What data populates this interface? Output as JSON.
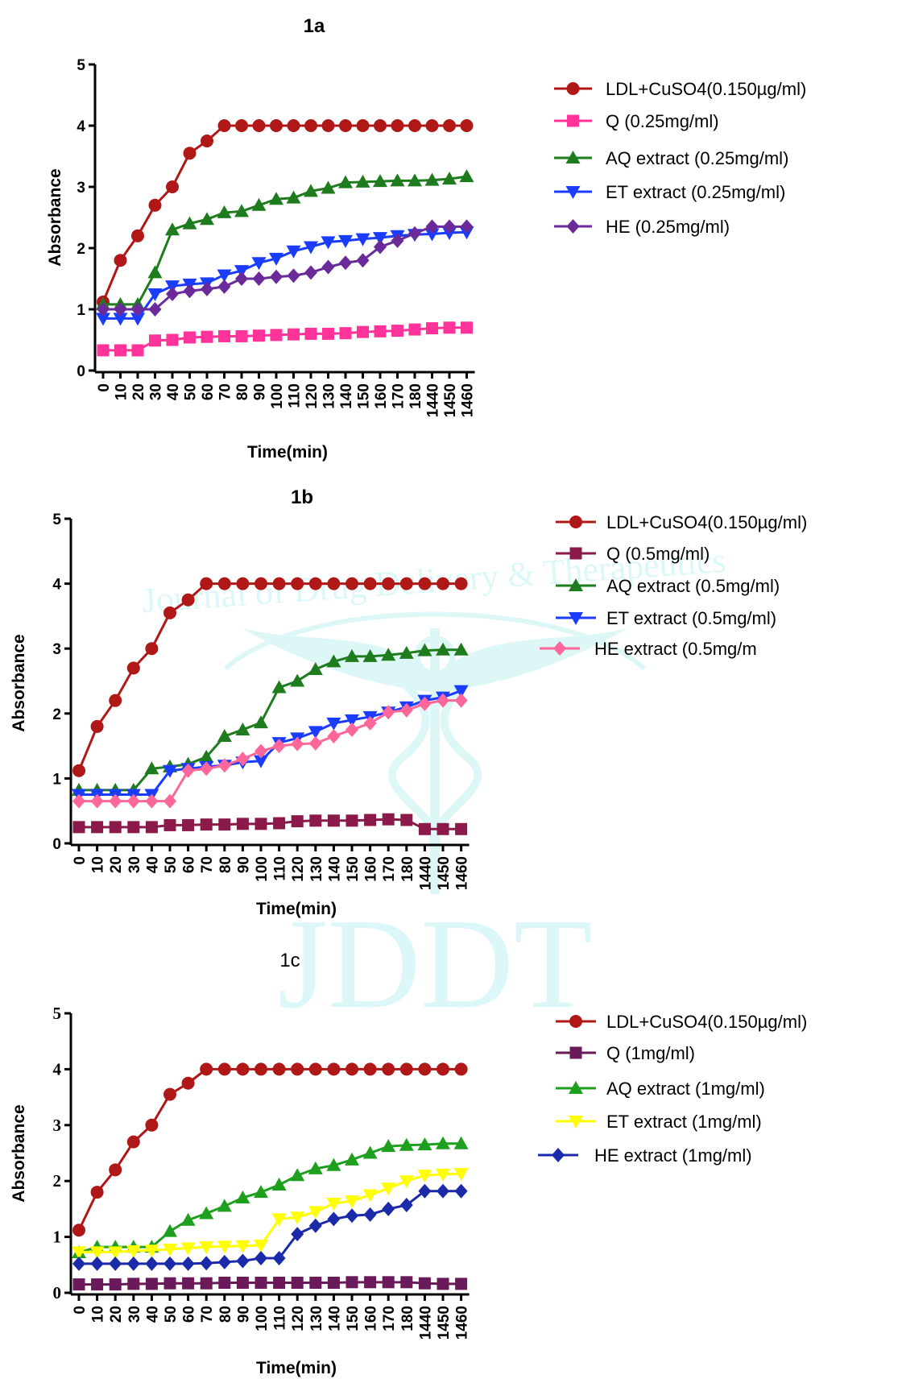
{
  "watermark": {
    "text": "JDDT",
    "subtitle": "Journal of Drug Delivery & Therapeutics"
  },
  "chart_data": [
    {
      "type": "line",
      "title": "1a",
      "xlabel": "Time(min)",
      "ylabel": "Absorbance",
      "categories": [
        "0",
        "10",
        "20",
        "30",
        "40",
        "50",
        "60",
        "70",
        "80",
        "90",
        "100",
        "110",
        "120",
        "130",
        "140",
        "150",
        "160",
        "170",
        "180",
        "1440",
        "1450",
        "1460"
      ],
      "ylim": [
        0,
        5
      ],
      "yticks": [
        "0",
        "1",
        "2",
        "3",
        "4",
        "5"
      ],
      "grid": false,
      "legend_position": "right",
      "series": [
        {
          "name": "LDL+CuSO4(0.150µg/ml)",
          "color": "#b01818",
          "marker": "circle",
          "values": [
            1.12,
            1.8,
            2.2,
            2.7,
            3.0,
            3.55,
            3.75,
            4.0,
            4.0,
            4.0,
            4.0,
            4.0,
            4.0,
            4.0,
            4.0,
            4.0,
            4.0,
            4.0,
            4.0,
            4.0,
            4.0,
            4.0
          ]
        },
        {
          "name": "Q (0.25mg/ml)",
          "color": "#ff3399",
          "marker": "square",
          "values": [
            0.33,
            0.33,
            0.33,
            0.49,
            0.5,
            0.54,
            0.55,
            0.56,
            0.56,
            0.57,
            0.58,
            0.59,
            0.6,
            0.6,
            0.61,
            0.63,
            0.64,
            0.65,
            0.67,
            0.69,
            0.7,
            0.7
          ]
        },
        {
          "name": "AQ extract (0.25mg/ml)",
          "color": "#1e7b1e",
          "marker": "triangle-up",
          "values": [
            1.08,
            1.08,
            1.08,
            1.6,
            2.3,
            2.4,
            2.47,
            2.58,
            2.6,
            2.7,
            2.8,
            2.82,
            2.93,
            2.98,
            3.07,
            3.08,
            3.09,
            3.1,
            3.1,
            3.11,
            3.13,
            3.17
          ]
        },
        {
          "name": "ET extract (0.25mg/ml)",
          "color": "#1a3cff",
          "marker": "triangle-down",
          "values": [
            0.85,
            0.85,
            0.85,
            1.25,
            1.38,
            1.41,
            1.43,
            1.56,
            1.63,
            1.76,
            1.83,
            1.95,
            2.02,
            2.1,
            2.12,
            2.15,
            2.17,
            2.2,
            2.22,
            2.23,
            2.25,
            2.26
          ]
        },
        {
          "name": "HE (0.25mg/ml)",
          "color": "#6a2a9a",
          "marker": "diamond",
          "values": [
            1.0,
            1.0,
            1.0,
            1.0,
            1.25,
            1.3,
            1.33,
            1.37,
            1.5,
            1.5,
            1.53,
            1.55,
            1.6,
            1.69,
            1.76,
            1.8,
            2.02,
            2.12,
            2.24,
            2.35,
            2.35,
            2.35
          ]
        }
      ]
    },
    {
      "type": "line",
      "title": "1b",
      "xlabel": "Time(min)",
      "ylabel": "Absorbance",
      "categories": [
        "0",
        "10",
        "20",
        "30",
        "40",
        "50",
        "60",
        "70",
        "80",
        "90",
        "100",
        "110",
        "120",
        "130",
        "140",
        "150",
        "160",
        "170",
        "180",
        "1440",
        "1450",
        "1460"
      ],
      "ylim": [
        0,
        5
      ],
      "yticks": [
        "0",
        "1",
        "2",
        "3",
        "4",
        "5"
      ],
      "grid": false,
      "legend_position": "right",
      "series": [
        {
          "name": "LDL+CuSO4(0.150µg/ml)",
          "color": "#b01818",
          "marker": "circle",
          "values": [
            1.12,
            1.8,
            2.2,
            2.7,
            3.0,
            3.55,
            3.75,
            4.0,
            4.0,
            4.0,
            4.0,
            4.0,
            4.0,
            4.0,
            4.0,
            4.0,
            4.0,
            4.0,
            4.0,
            4.0,
            4.0,
            4.0
          ]
        },
        {
          "name": "Q (0.5mg/ml)",
          "color": "#8b1a4a",
          "marker": "square",
          "values": [
            0.25,
            0.25,
            0.25,
            0.25,
            0.25,
            0.28,
            0.28,
            0.29,
            0.29,
            0.3,
            0.3,
            0.31,
            0.34,
            0.35,
            0.35,
            0.35,
            0.36,
            0.37,
            0.36,
            0.22,
            0.22,
            0.22
          ]
        },
        {
          "name": "AQ extract (0.5mg/ml)",
          "color": "#1e7b1e",
          "marker": "triangle-up",
          "values": [
            0.82,
            0.82,
            0.82,
            0.82,
            1.15,
            1.18,
            1.22,
            1.33,
            1.65,
            1.75,
            1.86,
            2.4,
            2.5,
            2.68,
            2.8,
            2.88,
            2.88,
            2.9,
            2.93,
            2.97,
            2.98,
            2.98
          ]
        },
        {
          "name": "ET extract (0.5mg/ml)",
          "color": "#1a3cff",
          "marker": "triangle-down",
          "values": [
            0.75,
            0.75,
            0.75,
            0.75,
            0.75,
            1.12,
            1.15,
            1.18,
            1.2,
            1.25,
            1.27,
            1.55,
            1.62,
            1.72,
            1.85,
            1.9,
            1.95,
            2.02,
            2.1,
            2.2,
            2.25,
            2.35
          ]
        },
        {
          "name": "HE extract (0.5mg/m",
          "color": "#ff6699",
          "marker": "diamond",
          "values": [
            0.65,
            0.65,
            0.65,
            0.65,
            0.65,
            0.65,
            1.12,
            1.15,
            1.2,
            1.3,
            1.42,
            1.5,
            1.53,
            1.54,
            1.65,
            1.75,
            1.85,
            2.02,
            2.05,
            2.15,
            2.2,
            2.2
          ]
        }
      ]
    },
    {
      "type": "line",
      "title": "1c",
      "xlabel": "Time(min)",
      "ylabel": "Absorbance",
      "categories": [
        "0",
        "10",
        "20",
        "30",
        "40",
        "50",
        "60",
        "70",
        "80",
        "90",
        "100",
        "110",
        "120",
        "130",
        "140",
        "150",
        "160",
        "170",
        "180",
        "1440",
        "1450",
        "1460"
      ],
      "ylim": [
        0,
        5
      ],
      "yticks": [
        "0",
        "1",
        "2",
        "3",
        "4",
        "5"
      ],
      "grid": false,
      "legend_position": "right",
      "series": [
        {
          "name": "LDL+CuSO4(0.150µg/ml)",
          "color": "#b01818",
          "marker": "circle",
          "values": [
            1.12,
            1.8,
            2.2,
            2.7,
            3.0,
            3.55,
            3.75,
            4.0,
            4.0,
            4.0,
            4.0,
            4.0,
            4.0,
            4.0,
            4.0,
            4.0,
            4.0,
            4.0,
            4.0,
            4.0,
            4.0,
            4.0
          ]
        },
        {
          "name": "Q (1mg/ml)",
          "color": "#6a1a5a",
          "marker": "square",
          "values": [
            0.15,
            0.15,
            0.15,
            0.16,
            0.16,
            0.17,
            0.17,
            0.17,
            0.18,
            0.18,
            0.18,
            0.18,
            0.18,
            0.18,
            0.18,
            0.19,
            0.19,
            0.19,
            0.19,
            0.17,
            0.16,
            0.16
          ]
        },
        {
          "name": "AQ extract (1mg/ml)",
          "color": "#1ea01e",
          "marker": "triangle-up",
          "values": [
            0.72,
            0.82,
            0.82,
            0.82,
            0.82,
            1.1,
            1.3,
            1.42,
            1.55,
            1.7,
            1.8,
            1.93,
            2.1,
            2.22,
            2.28,
            2.38,
            2.5,
            2.62,
            2.64,
            2.65,
            2.67,
            2.67
          ]
        },
        {
          "name": "ET extract (1mg/ml)",
          "color": "#ffff00",
          "marker": "triangle-down",
          "values": [
            0.73,
            0.73,
            0.73,
            0.75,
            0.76,
            0.78,
            0.8,
            0.82,
            0.83,
            0.84,
            0.85,
            1.32,
            1.35,
            1.45,
            1.6,
            1.64,
            1.75,
            1.87,
            2.0,
            2.1,
            2.12,
            2.13
          ]
        },
        {
          "name": "HE extract (1mg/ml)",
          "color": "#1a2aa8",
          "marker": "diamond",
          "values": [
            0.52,
            0.52,
            0.52,
            0.52,
            0.52,
            0.52,
            0.52,
            0.53,
            0.55,
            0.57,
            0.62,
            0.62,
            1.05,
            1.2,
            1.32,
            1.38,
            1.4,
            1.5,
            1.57,
            1.82,
            1.82,
            1.82
          ]
        }
      ]
    }
  ]
}
